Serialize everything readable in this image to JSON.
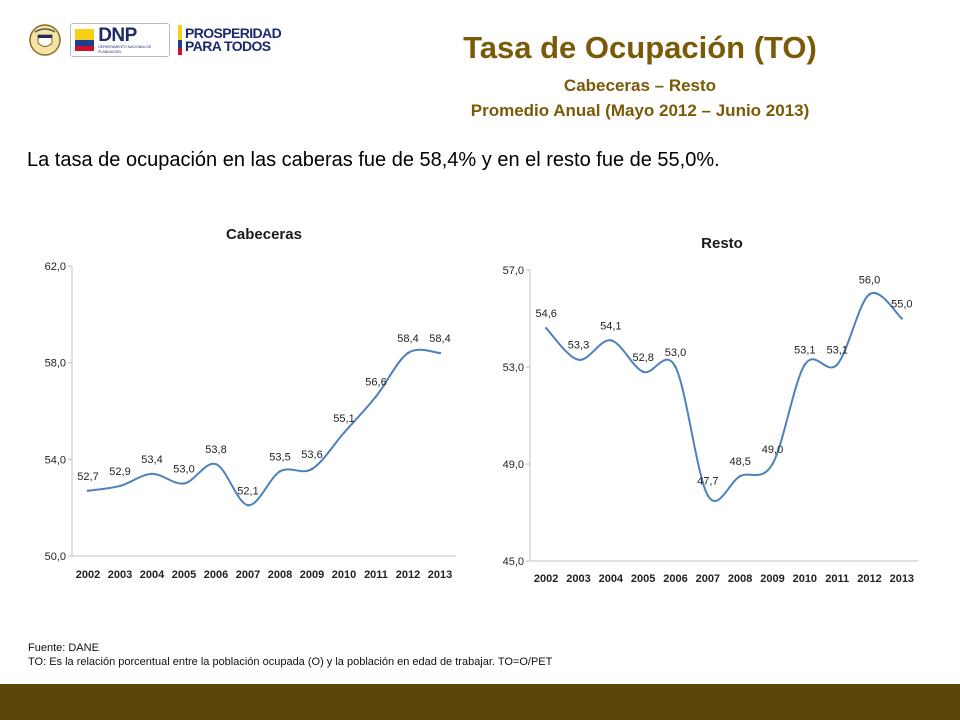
{
  "header": {
    "title": "Tasa de Ocupación (TO)",
    "subtitle": "Cabeceras – Resto",
    "period": "Promedio Anual (Mayo 2012 – Junio 2013)",
    "logos": [
      {
        "name": "colombia-coat-of-arms",
        "text": ""
      },
      {
        "name": "dnp-logo",
        "text": "DNP",
        "subtext": "DEPARTAMENTO NACIONAL DE PLANEACIÓN"
      },
      {
        "name": "prosperidad-para-todos-logo",
        "text_line1": "PROSPERIDAD",
        "text_line2": "PARA TODOS"
      }
    ]
  },
  "summary_text": "La tasa de ocupación en las caberas fue de 58,4% y en el resto fue de 55,0%.",
  "chart_data": [
    {
      "type": "line",
      "title": "Cabeceras",
      "categories": [
        "2002",
        "2003",
        "2004",
        "2005",
        "2006",
        "2007",
        "2008",
        "2009",
        "2010",
        "2011",
        "2012",
        "2013"
      ],
      "values": [
        52.7,
        52.9,
        53.4,
        53.0,
        53.8,
        52.1,
        53.5,
        53.6,
        55.1,
        56.6,
        58.4,
        58.4
      ],
      "data_labels": [
        "52,7",
        "52,9",
        "53,4",
        "53,0",
        "53,8",
        "52,1",
        "53,5",
        "53,6",
        "55,1",
        "56,6",
        "58,4",
        "58,4"
      ],
      "y_ticks": [
        50.0,
        54.0,
        58.0,
        62.0
      ],
      "y_tick_labels": [
        "50,0",
        "54,0",
        "58,0",
        "62,0"
      ],
      "ylim": [
        50.0,
        62.0
      ],
      "grid": false,
      "line_color": "#4f81bd"
    },
    {
      "type": "line",
      "title": "Resto",
      "categories": [
        "2002",
        "2003",
        "2004",
        "2005",
        "2006",
        "2007",
        "2008",
        "2009",
        "2010",
        "2011",
        "2012",
        "2013"
      ],
      "values": [
        54.6,
        53.3,
        54.1,
        52.8,
        53.0,
        47.7,
        48.5,
        49.0,
        53.1,
        53.1,
        56.0,
        55.0
      ],
      "data_labels": [
        "54,6",
        "53,3",
        "54,1",
        "52,8",
        "53,0",
        "47,7",
        "48,5",
        "49,0",
        "53,1",
        "53,1",
        "56,0",
        "55,0"
      ],
      "y_ticks": [
        45.0,
        49.0,
        53.0,
        57.0
      ],
      "y_tick_labels": [
        "45,0",
        "49,0",
        "53,0",
        "57,0"
      ],
      "ylim": [
        45.0,
        57.0
      ],
      "grid": false,
      "line_color": "#4f81bd"
    }
  ],
  "footer": {
    "source": "Fuente: DANE",
    "note": "TO: Es la relación porcentual entre la población ocupada (O) y la población  en edad de trabajar. TO=O/PET"
  },
  "colors": {
    "title": "#7a5a07",
    "bottom_bar": "#5b4609",
    "axis": "#c0c0c0"
  }
}
